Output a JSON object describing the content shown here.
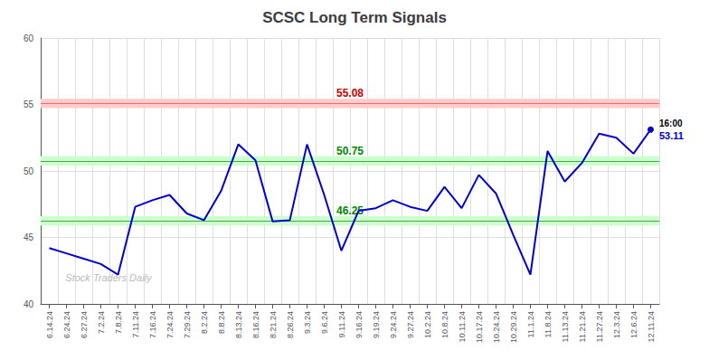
{
  "chart_data": {
    "type": "line",
    "title": "SCSC Long Term Signals",
    "categories": [
      "6.14.24",
      "6.24.24",
      "6.27.24",
      "7.2.24",
      "7.8.24",
      "7.11.24",
      "7.16.24",
      "7.24.24",
      "7.29.24",
      "8.2.24",
      "8.8.24",
      "8.13.24",
      "8.16.24",
      "8.21.24",
      "8.26.24",
      "9.3.24",
      "9.6.24",
      "9.11.24",
      "9.16.24",
      "9.19.24",
      "9.24.24",
      "9.27.24",
      "10.2.24",
      "10.8.24",
      "10.11.24",
      "10.17.24",
      "10.24.24",
      "10.29.24",
      "11.1.24",
      "11.8.24",
      "11.13.24",
      "11.21.24",
      "11.27.24",
      "12.3.24",
      "12.6.24",
      "12.11.24"
    ],
    "values": [
      44.2,
      43.8,
      43.4,
      43.0,
      42.2,
      47.3,
      47.8,
      48.2,
      46.8,
      46.3,
      48.5,
      52.0,
      50.8,
      46.2,
      46.3,
      52.0,
      48.2,
      44.0,
      47.0,
      47.2,
      47.8,
      47.3,
      47.0,
      48.8,
      47.2,
      49.7,
      48.3,
      45.2,
      42.2,
      51.5,
      49.2,
      50.6,
      52.8,
      52.5,
      51.3,
      53.11
    ],
    "color": "#0000cc",
    "ylim": [
      40,
      60
    ],
    "yticks": [
      40,
      45,
      50,
      55,
      60
    ],
    "grid": true,
    "levels": [
      {
        "value": 55.08,
        "label": "55.08",
        "half_height": 0.35,
        "color": "#ff6666",
        "band_color": "#ffcccc",
        "label_color": "#cc0000"
      },
      {
        "value": 50.75,
        "label": "50.75",
        "half_height": 0.35,
        "color": "#44aa44",
        "band_color": "#ccffcc",
        "label_color": "#008800"
      },
      {
        "value": 46.25,
        "label": "46.25",
        "half_height": 0.35,
        "color": "#44aa44",
        "band_color": "#ccffcc",
        "label_color": "#008800"
      }
    ],
    "last_time": "16:00",
    "last_price": "53.11",
    "watermark": "Stock Traders Daily",
    "watermark_color": "#bbbbbb"
  }
}
